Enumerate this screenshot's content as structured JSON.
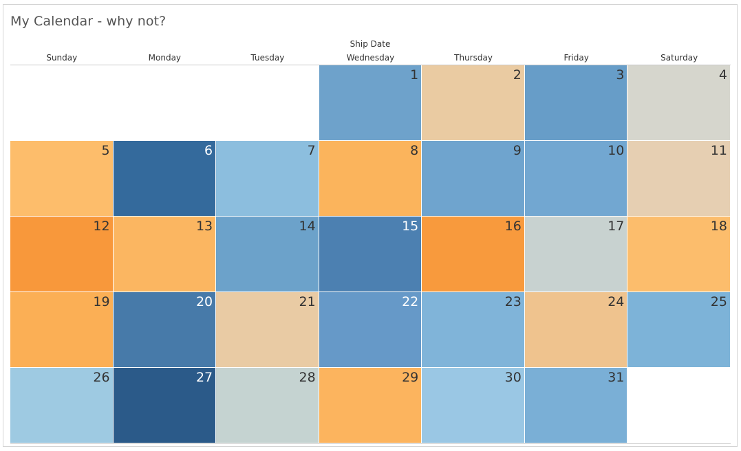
{
  "title": "My Calendar - why not?",
  "field_label": "Ship Date",
  "weekdays": [
    "Sunday",
    "Monday",
    "Tuesday",
    "Wednesday",
    "Thursday",
    "Friday",
    "Saturday"
  ],
  "first_weekday_index": 3,
  "days": [
    {
      "day": "1",
      "color": "#6ea2cb",
      "text_color": "#333333"
    },
    {
      "day": "2",
      "color": "#eacba2",
      "text_color": "#333333"
    },
    {
      "day": "3",
      "color": "#679dc8",
      "text_color": "#333333"
    },
    {
      "day": "4",
      "color": "#d6d6cd",
      "text_color": "#333333"
    },
    {
      "day": "5",
      "color": "#fdbd6b",
      "text_color": "#333333"
    },
    {
      "day": "6",
      "color": "#346a9c",
      "text_color": "#ffffff"
    },
    {
      "day": "7",
      "color": "#8cbede",
      "text_color": "#333333"
    },
    {
      "day": "8",
      "color": "#fbb45c",
      "text_color": "#333333"
    },
    {
      "day": "9",
      "color": "#6fa4ce",
      "text_color": "#333333"
    },
    {
      "day": "10",
      "color": "#72a7d1",
      "text_color": "#333333"
    },
    {
      "day": "11",
      "color": "#e6cfb2",
      "text_color": "#333333"
    },
    {
      "day": "12",
      "color": "#f8983b",
      "text_color": "#333333"
    },
    {
      "day": "13",
      "color": "#fbb661",
      "text_color": "#333333"
    },
    {
      "day": "14",
      "color": "#6ca2ca",
      "text_color": "#333333"
    },
    {
      "day": "15",
      "color": "#4c80b1",
      "text_color": "#ffffff"
    },
    {
      "day": "16",
      "color": "#f89a3d",
      "text_color": "#333333"
    },
    {
      "day": "17",
      "color": "#c8d2d0",
      "text_color": "#333333"
    },
    {
      "day": "18",
      "color": "#fcbd6c",
      "text_color": "#333333"
    },
    {
      "day": "19",
      "color": "#fbaf55",
      "text_color": "#333333"
    },
    {
      "day": "20",
      "color": "#477aa9",
      "text_color": "#ffffff"
    },
    {
      "day": "21",
      "color": "#e9cba4",
      "text_color": "#333333"
    },
    {
      "day": "22",
      "color": "#6699c8",
      "text_color": "#ffffff"
    },
    {
      "day": "23",
      "color": "#80b4d9",
      "text_color": "#333333"
    },
    {
      "day": "24",
      "color": "#efc38e",
      "text_color": "#333333"
    },
    {
      "day": "25",
      "color": "#7db3d8",
      "text_color": "#333333"
    },
    {
      "day": "26",
      "color": "#9ecae2",
      "text_color": "#333333"
    },
    {
      "day": "27",
      "color": "#2b5a89",
      "text_color": "#ffffff"
    },
    {
      "day": "28",
      "color": "#c5d3d1",
      "text_color": "#333333"
    },
    {
      "day": "29",
      "color": "#fcb45e",
      "text_color": "#333333"
    },
    {
      "day": "30",
      "color": "#9ac7e4",
      "text_color": "#333333"
    },
    {
      "day": "31",
      "color": "#7aafd6",
      "text_color": "#333333"
    }
  ]
}
